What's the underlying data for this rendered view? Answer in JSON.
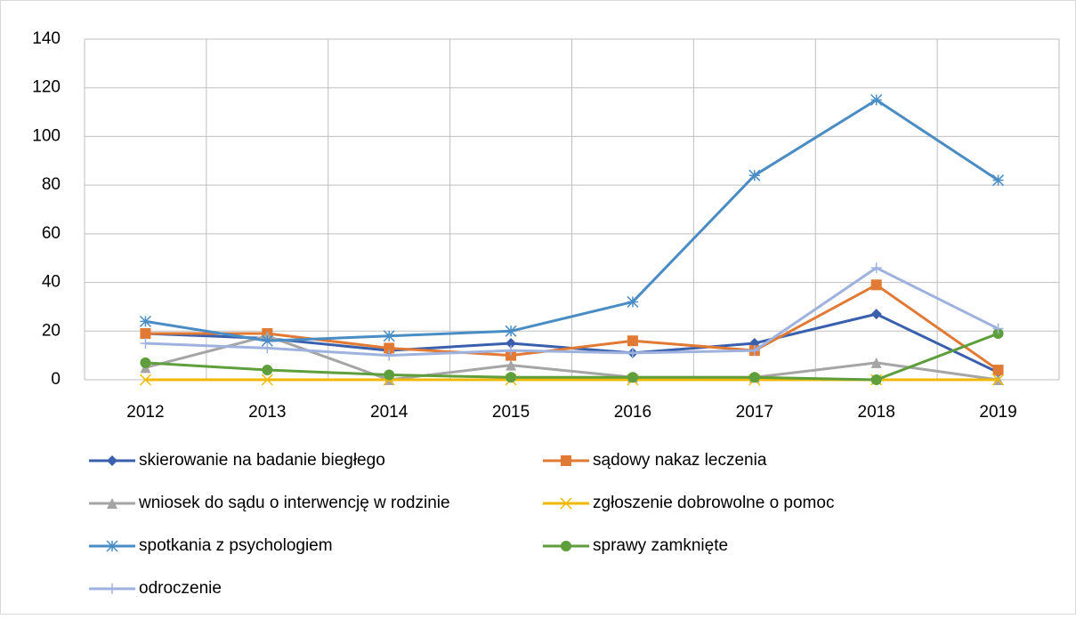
{
  "chart_data": {
    "type": "line",
    "categories": [
      "2012",
      "2013",
      "2014",
      "2015",
      "2016",
      "2017",
      "2018",
      "2019"
    ],
    "series": [
      {
        "name": "skierowanie na badanie biegłego",
        "color": "#3a5fad",
        "marker": "diamond",
        "values": [
          19,
          17,
          12,
          15,
          11,
          15,
          27,
          3
        ]
      },
      {
        "name": "sądowy nakaz leczenia",
        "color": "#e07a35",
        "marker": "square",
        "values": [
          19,
          19,
          13,
          10,
          16,
          12,
          39,
          4
        ]
      },
      {
        "name": "wniosek do sądu o interwencję w rodzinie",
        "color": "#a5a5a5",
        "marker": "triangle",
        "values": [
          5,
          18,
          0,
          6,
          1,
          1,
          7,
          0
        ]
      },
      {
        "name": "zgłoszenie dobrowolne o pomoc",
        "color": "#f2b800",
        "marker": "x",
        "values": [
          0,
          0,
          0,
          0,
          0,
          0,
          0,
          0
        ]
      },
      {
        "name": "spotkania z psychologiem",
        "color": "#4a8cc4",
        "marker": "star",
        "values": [
          24,
          16,
          18,
          20,
          32,
          84,
          115,
          82
        ]
      },
      {
        "name": "sprawy zamknięte",
        "color": "#5e9e3c",
        "marker": "circle",
        "values": [
          7,
          4,
          2,
          1,
          1,
          1,
          0,
          19
        ]
      },
      {
        "name": "odroczenie",
        "color": "#9fb2de",
        "marker": "plus",
        "values": [
          15,
          13,
          10,
          12,
          11,
          12,
          46,
          21
        ]
      }
    ],
    "ylim": [
      0,
      140
    ],
    "yticks": [
      0,
      20,
      40,
      60,
      80,
      100,
      120,
      140
    ],
    "grid": true,
    "legend": "bottom"
  }
}
